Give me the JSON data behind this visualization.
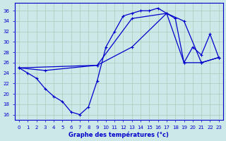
{
  "xlabel": "Graphe des températures (°c)",
  "bg_color": "#cce8e8",
  "grid_color": "#aaccbb",
  "line_color": "#0000cc",
  "ylim": [
    15.0,
    37.5
  ],
  "xlim": [
    -0.5,
    23.5
  ],
  "yticks": [
    16,
    18,
    20,
    22,
    24,
    26,
    28,
    30,
    32,
    34,
    36
  ],
  "xticks": [
    0,
    1,
    2,
    3,
    4,
    5,
    6,
    7,
    8,
    9,
    10,
    11,
    12,
    13,
    14,
    15,
    16,
    17,
    18,
    19,
    20,
    21,
    22,
    23
  ],
  "line1_x": [
    0,
    1,
    2,
    3,
    4,
    5,
    6,
    7,
    8,
    9,
    10,
    11,
    12,
    13,
    14,
    15,
    16,
    17,
    18,
    19,
    20,
    21,
    22,
    23
  ],
  "line1_y": [
    25.0,
    24.0,
    23.0,
    21.0,
    19.5,
    18.5,
    16.5,
    16.0,
    17.5,
    22.5,
    29.0,
    32.0,
    35.0,
    35.5,
    36.0,
    36.0,
    36.5,
    35.5,
    34.5,
    26.0,
    29.0,
    27.5,
    31.5,
    27.0
  ],
  "line2_x": [
    0,
    3,
    9,
    13,
    17,
    19,
    21,
    23
  ],
  "line2_y": [
    25.0,
    24.5,
    25.5,
    29.0,
    35.5,
    34.0,
    26.0,
    27.0
  ],
  "line3_x": [
    0,
    9,
    13,
    17,
    19,
    21,
    23
  ],
  "line3_y": [
    25.0,
    25.5,
    34.5,
    35.5,
    26.0,
    26.0,
    27.0
  ]
}
